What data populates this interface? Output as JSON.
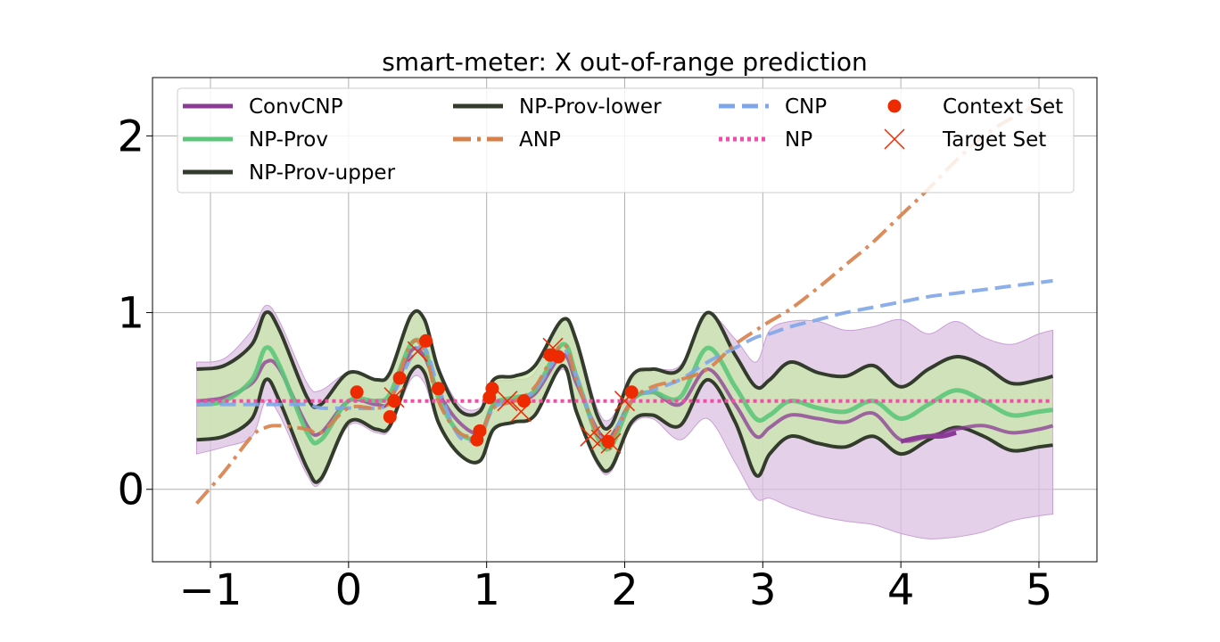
{
  "chart_data": {
    "type": "line",
    "title": "smart-meter: X out-of-range prediction",
    "xlabel": "",
    "ylabel": "",
    "xlim": [
      -1.42,
      5.42
    ],
    "ylim": [
      -0.41,
      2.33
    ],
    "xticks": [
      -1,
      0,
      1,
      2,
      3,
      4,
      5
    ],
    "xtick_labels": [
      "−1",
      "0",
      "1",
      "2",
      "3",
      "4",
      "5"
    ],
    "yticks": [
      0,
      1,
      2
    ],
    "ytick_labels": [
      "0",
      "1",
      "2"
    ],
    "grid": true,
    "legend_position": "top",
    "colors": {
      "ConvCNP": "#8b3a96",
      "ConvCNP_band": "#dcc0e3",
      "NP-Prov": "#5cc77a",
      "NP-Prov_band": "#c8e8a8",
      "NP-Prov-bound": "#333c2c",
      "ANP": "#d8804a",
      "CNP": "#7fa6e8",
      "NP": "#f44aa8",
      "points": "#ee2a00"
    },
    "legend": [
      {
        "label": "ConvCNP",
        "kind": "line",
        "series": "ConvCNP"
      },
      {
        "label": "NP-Prov",
        "kind": "line",
        "series": "NP-Prov"
      },
      {
        "label": "NP-Prov-upper",
        "kind": "line",
        "series": "NP-Prov-upper"
      },
      {
        "label": "NP-Prov-lower",
        "kind": "line",
        "series": "NP-Prov-lower"
      },
      {
        "label": "ANP",
        "kind": "dashdot",
        "series": "ANP"
      },
      {
        "label": "CNP",
        "kind": "dashed",
        "series": "CNP"
      },
      {
        "label": "NP",
        "kind": "dotted",
        "series": "NP"
      },
      {
        "label": "Context Set",
        "kind": "circle",
        "series": "context"
      },
      {
        "label": "Target Set",
        "kind": "cross",
        "series": "target"
      }
    ],
    "x": [
      -1.1,
      -0.9,
      -0.7,
      -0.6,
      -0.5,
      -0.3,
      -0.2,
      0,
      0.2,
      0.3,
      0.45,
      0.55,
      0.65,
      0.8,
      0.95,
      1.05,
      1.2,
      1.35,
      1.55,
      1.65,
      1.8,
      1.9,
      2.05,
      2.2,
      2.4,
      2.6,
      2.8,
      2.95,
      3.05,
      3.2,
      3.4,
      3.6,
      3.8,
      4.0,
      4.2,
      4.4,
      4.6,
      4.8,
      5.0,
      5.1
    ],
    "series": [
      {
        "name": "ConvCNP",
        "values": [
          0.5,
          0.52,
          0.6,
          0.72,
          0.68,
          0.36,
          0.32,
          0.5,
          0.48,
          0.5,
          0.78,
          0.75,
          0.55,
          0.38,
          0.32,
          0.48,
          0.5,
          0.54,
          0.76,
          0.6,
          0.34,
          0.3,
          0.5,
          0.55,
          0.48,
          0.68,
          0.48,
          0.3,
          0.35,
          0.42,
          0.4,
          0.38,
          0.43,
          0.28,
          0.3,
          0.34,
          0.36,
          0.32,
          0.34,
          0.36
        ]
      },
      {
        "name": "NP-Prov",
        "values": [
          0.48,
          0.5,
          0.62,
          0.8,
          0.7,
          0.32,
          0.28,
          0.5,
          0.5,
          0.54,
          0.82,
          0.8,
          0.52,
          0.32,
          0.3,
          0.48,
          0.52,
          0.56,
          0.82,
          0.64,
          0.3,
          0.24,
          0.5,
          0.55,
          0.52,
          0.8,
          0.58,
          0.4,
          0.42,
          0.5,
          0.46,
          0.44,
          0.5,
          0.4,
          0.48,
          0.56,
          0.5,
          0.42,
          0.44,
          0.45
        ]
      },
      {
        "name": "NP-Prov-upper",
        "values": [
          0.68,
          0.7,
          0.82,
          1.0,
          0.9,
          0.52,
          0.48,
          0.66,
          0.62,
          0.66,
          0.98,
          0.96,
          0.68,
          0.45,
          0.44,
          0.62,
          0.64,
          0.7,
          0.96,
          0.84,
          0.42,
          0.36,
          0.64,
          0.68,
          0.68,
          1.0,
          0.76,
          0.58,
          0.62,
          0.72,
          0.66,
          0.64,
          0.7,
          0.58,
          0.68,
          0.75,
          0.7,
          0.6,
          0.62,
          0.64
        ]
      },
      {
        "name": "NP-Prov-lower",
        "values": [
          0.28,
          0.3,
          0.4,
          0.62,
          0.5,
          0.12,
          0.06,
          0.38,
          0.34,
          0.36,
          0.66,
          0.66,
          0.38,
          0.2,
          0.16,
          0.34,
          0.38,
          0.42,
          0.7,
          0.44,
          0.16,
          0.12,
          0.38,
          0.42,
          0.36,
          0.62,
          0.38,
          0.08,
          0.2,
          0.3,
          0.26,
          0.24,
          0.3,
          0.2,
          0.28,
          0.35,
          0.3,
          0.22,
          0.24,
          0.25
        ]
      },
      {
        "name": "ConvCNP-upper",
        "values": [
          0.72,
          0.74,
          0.9,
          1.04,
          0.95,
          0.6,
          0.56,
          0.66,
          0.62,
          0.64,
          0.98,
          0.96,
          0.7,
          0.48,
          0.46,
          0.6,
          0.62,
          0.66,
          0.96,
          0.86,
          0.46,
          0.4,
          0.62,
          0.68,
          0.7,
          0.98,
          0.85,
          0.72,
          0.9,
          0.95,
          0.95,
          0.9,
          0.92,
          0.96,
          0.88,
          0.95,
          0.86,
          0.82,
          0.88,
          0.9
        ]
      },
      {
        "name": "ConvCNP-lower",
        "values": [
          0.2,
          0.24,
          0.3,
          0.5,
          0.42,
          0.08,
          0.04,
          0.36,
          0.32,
          0.34,
          0.62,
          0.6,
          0.36,
          0.2,
          0.16,
          0.34,
          0.38,
          0.42,
          0.68,
          0.42,
          0.14,
          0.1,
          0.36,
          0.4,
          0.28,
          0.4,
          0.15,
          -0.05,
          -0.05,
          -0.1,
          -0.15,
          -0.18,
          -0.2,
          -0.25,
          -0.28,
          -0.27,
          -0.24,
          -0.18,
          -0.15,
          -0.14
        ]
      },
      {
        "name": "ANP",
        "values": [
          -0.08,
          0.1,
          0.3,
          0.35,
          0.36,
          0.34,
          0.32,
          0.46,
          0.46,
          0.5,
          0.82,
          0.78,
          0.5,
          0.32,
          0.32,
          0.46,
          0.5,
          0.58,
          0.82,
          0.62,
          0.32,
          0.28,
          0.5,
          0.58,
          0.62,
          0.68,
          0.82,
          0.9,
          0.95,
          1.02,
          1.14,
          1.27,
          1.4,
          1.55,
          1.7,
          1.86,
          2.0,
          2.1,
          2.18,
          2.2
        ]
      },
      {
        "name": "CNP",
        "values": [
          0.48,
          0.48,
          0.48,
          0.48,
          0.48,
          0.48,
          0.46,
          0.46,
          0.46,
          0.5,
          0.74,
          0.8,
          0.58,
          0.3,
          0.3,
          0.46,
          0.5,
          0.56,
          0.78,
          0.64,
          0.32,
          0.3,
          0.5,
          0.56,
          0.62,
          0.72,
          0.8,
          0.86,
          0.88,
          0.92,
          0.96,
          1.0,
          1.03,
          1.06,
          1.09,
          1.11,
          1.13,
          1.15,
          1.17,
          1.18
        ]
      },
      {
        "name": "NP",
        "values": [
          0.5,
          0.5,
          0.5,
          0.5,
          0.5,
          0.5,
          0.5,
          0.5,
          0.5,
          0.5,
          0.5,
          0.5,
          0.5,
          0.5,
          0.5,
          0.5,
          0.5,
          0.5,
          0.5,
          0.5,
          0.5,
          0.5,
          0.5,
          0.5,
          0.5,
          0.5,
          0.5,
          0.5,
          0.5,
          0.5,
          0.5,
          0.5,
          0.5,
          0.5,
          0.5,
          0.5,
          0.5,
          0.5,
          0.5,
          0.5
        ]
      }
    ],
    "convcnp_target_segment": {
      "x": [
        4.0,
        4.1,
        4.2,
        4.3,
        4.4
      ],
      "values": [
        0.27,
        0.29,
        0.3,
        0.3,
        0.32
      ]
    },
    "context_set": [
      {
        "x": 0.06,
        "y": 0.55
      },
      {
        "x": 0.3,
        "y": 0.41
      },
      {
        "x": 0.33,
        "y": 0.5
      },
      {
        "x": 0.37,
        "y": 0.63
      },
      {
        "x": 0.56,
        "y": 0.84
      },
      {
        "x": 0.65,
        "y": 0.57
      },
      {
        "x": 0.93,
        "y": 0.28
      },
      {
        "x": 0.95,
        "y": 0.33
      },
      {
        "x": 1.02,
        "y": 0.52
      },
      {
        "x": 1.04,
        "y": 0.57
      },
      {
        "x": 1.27,
        "y": 0.5
      },
      {
        "x": 1.46,
        "y": 0.76
      },
      {
        "x": 1.52,
        "y": 0.75
      },
      {
        "x": 1.88,
        "y": 0.27
      },
      {
        "x": 2.05,
        "y": 0.55
      }
    ],
    "target_set": [
      {
        "x": 0.33,
        "y": 0.52
      },
      {
        "x": 0.5,
        "y": 0.78
      },
      {
        "x": 1.15,
        "y": 0.5
      },
      {
        "x": 1.25,
        "y": 0.44
      },
      {
        "x": 1.48,
        "y": 0.8
      },
      {
        "x": 1.75,
        "y": 0.3
      },
      {
        "x": 1.83,
        "y": 0.28
      },
      {
        "x": 1.9,
        "y": 0.26
      },
      {
        "x": 2.0,
        "y": 0.5
      }
    ]
  }
}
